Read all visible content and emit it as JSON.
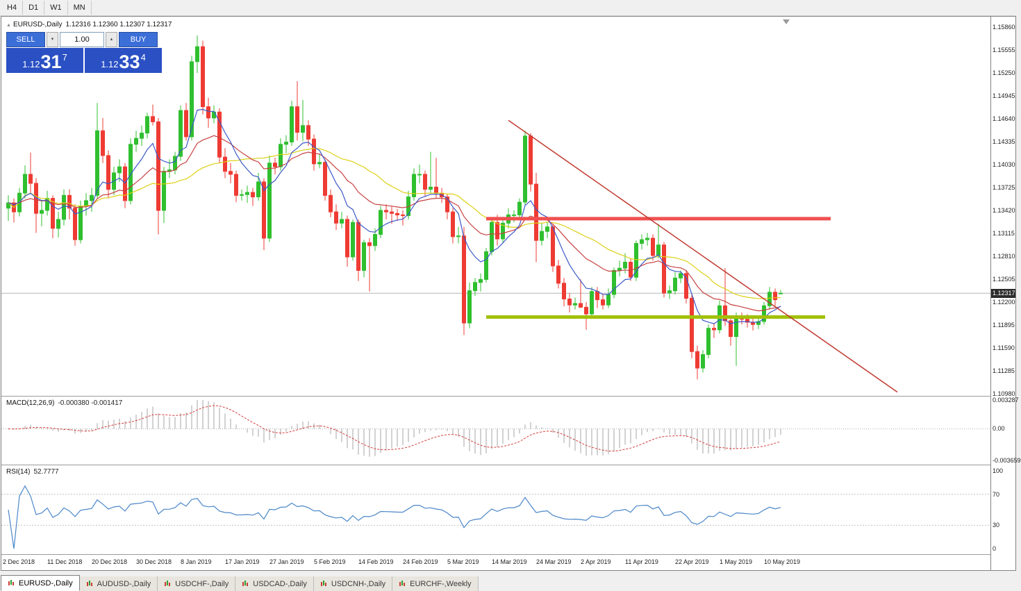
{
  "toolbar": {
    "timeframes": [
      "H4",
      "D1",
      "W1",
      "MN"
    ]
  },
  "chart": {
    "collapse_icon": "▲",
    "title_symbol": "EURUSD-,Daily",
    "title_ohlc": "1.12316 1.12360 1.12307 1.12317"
  },
  "trade_panel": {
    "sell_label": "SELL",
    "buy_label": "BUY",
    "volume": "1.00",
    "spin_down_icon": "▼",
    "spin_up_icon": "▲",
    "sell_price": {
      "prefix": "1.12",
      "big": "31",
      "sup": "7"
    },
    "buy_price": {
      "prefix": "1.12",
      "big": "33",
      "sup": "4"
    }
  },
  "macd_panel": {
    "label": "MACD(12,26,9)",
    "values": "-0.000380 -0.001417"
  },
  "rsi_panel": {
    "label": "RSI(14)",
    "value": "52.7777"
  },
  "date_axis": {
    "labels": [
      {
        "text": "2 Dec 2018",
        "bar": 0
      },
      {
        "text": "11 Dec 2018",
        "bar": 8
      },
      {
        "text": "20 Dec 2018",
        "bar": 16
      },
      {
        "text": "30 Dec 2018",
        "bar": 24
      },
      {
        "text": "8 Jan 2019",
        "bar": 32
      },
      {
        "text": "17 Jan 2019",
        "bar": 40
      },
      {
        "text": "27 Jan 2019",
        "bar": 48
      },
      {
        "text": "5 Feb 2019",
        "bar": 56
      },
      {
        "text": "14 Feb 2019",
        "bar": 64
      },
      {
        "text": "24 Feb 2019",
        "bar": 72
      },
      {
        "text": "5 Mar 2019",
        "bar": 80
      },
      {
        "text": "14 Mar 2019",
        "bar": 88
      },
      {
        "text": "24 Mar 2019",
        "bar": 96
      },
      {
        "text": "2 Apr 2019",
        "bar": 104
      },
      {
        "text": "11 Apr 2019",
        "bar": 112
      },
      {
        "text": "22 Apr 2019",
        "bar": 121
      },
      {
        "text": "1 May 2019",
        "bar": 129
      },
      {
        "text": "10 May 2019",
        "bar": 137
      }
    ]
  },
  "tabs": [
    {
      "label": "EURUSD-,Daily",
      "active": true
    },
    {
      "label": "AUDUSD-,Daily",
      "active": false
    },
    {
      "label": "USDCHF-,Daily",
      "active": false
    },
    {
      "label": "USDCAD-,Daily",
      "active": false
    },
    {
      "label": "USDCNH-,Daily",
      "active": false
    },
    {
      "label": "EURCHF-,Weekly",
      "active": false
    }
  ],
  "chart_data": {
    "type": "candlestick",
    "symbol": "EURUSD",
    "timeframe": "Daily",
    "price_axis": {
      "top": 1.16,
      "bottom": 1.1095,
      "ticks": [
        1.1586,
        1.15555,
        1.1525,
        1.14945,
        1.1464,
        1.14335,
        1.1403,
        1.13725,
        1.1342,
        1.13115,
        1.1281,
        1.12505,
        1.122,
        1.11895,
        1.1159,
        1.11285,
        1.1098
      ],
      "current": 1.12317,
      "current_label": "1.12317"
    },
    "colors": {
      "up": "#2fbf2f",
      "down": "#ee3b33",
      "ma_fast": "#3c59c8",
      "ma_mid": "#c84040",
      "ma_slow": "#ddd013",
      "macd_hist": "#a4a4a4",
      "macd_signal": "#d43a3a",
      "rsi": "#4a86c8",
      "resistance": "#f05050",
      "support": "#a2c00a",
      "trendline": "#c03a30",
      "current_line": "#b6b6b6",
      "levels": "#c0c0c0"
    },
    "candles": [
      [
        1.1345,
        1.1362,
        1.1328,
        1.1352
      ],
      [
        1.1352,
        1.1358,
        1.1326,
        1.134
      ],
      [
        1.134,
        1.1372,
        1.1334,
        1.1365
      ],
      [
        1.1365,
        1.1402,
        1.1358,
        1.139
      ],
      [
        1.139,
        1.1419,
        1.1365,
        1.1378
      ],
      [
        1.1378,
        1.1385,
        1.1312,
        1.1338
      ],
      [
        1.1338,
        1.1355,
        1.1321,
        1.1342
      ],
      [
        1.1342,
        1.1368,
        1.1335,
        1.1358
      ],
      [
        1.1358,
        1.1362,
        1.1305,
        1.1318
      ],
      [
        1.1318,
        1.134,
        1.1306,
        1.133
      ],
      [
        1.133,
        1.137,
        1.1322,
        1.1362
      ],
      [
        1.1362,
        1.137,
        1.133,
        1.1345
      ],
      [
        1.1345,
        1.135,
        1.1295,
        1.1303
      ],
      [
        1.1303,
        1.1355,
        1.1298,
        1.1348
      ],
      [
        1.1348,
        1.1365,
        1.1335,
        1.1355
      ],
      [
        1.1355,
        1.1372,
        1.134,
        1.1362
      ],
      [
        1.1362,
        1.1485,
        1.1358,
        1.1448
      ],
      [
        1.1448,
        1.1465,
        1.1405,
        1.1415
      ],
      [
        1.1415,
        1.1422,
        1.1358,
        1.137
      ],
      [
        1.137,
        1.14,
        1.1362,
        1.1392
      ],
      [
        1.1392,
        1.141,
        1.138,
        1.14
      ],
      [
        1.14,
        1.1405,
        1.1345,
        1.1355
      ],
      [
        1.1355,
        1.1438,
        1.135,
        1.143
      ],
      [
        1.143,
        1.1448,
        1.142,
        1.1438
      ],
      [
        1.1438,
        1.1455,
        1.1428,
        1.1445
      ],
      [
        1.1445,
        1.1472,
        1.1438,
        1.1467
      ],
      [
        1.1467,
        1.1483,
        1.1455,
        1.146
      ],
      [
        1.146,
        1.1465,
        1.131,
        1.1342
      ],
      [
        1.1342,
        1.14,
        1.1325,
        1.1394
      ],
      [
        1.1394,
        1.141,
        1.1385,
        1.1396
      ],
      [
        1.1396,
        1.142,
        1.139,
        1.1414
      ],
      [
        1.1414,
        1.1482,
        1.1408,
        1.1475
      ],
      [
        1.1475,
        1.1485,
        1.1435,
        1.144
      ],
      [
        1.144,
        1.1548,
        1.1435,
        1.154
      ],
      [
        1.154,
        1.1575,
        1.1525,
        1.156
      ],
      [
        1.156,
        1.1568,
        1.147,
        1.148
      ],
      [
        1.148,
        1.1492,
        1.1452,
        1.1465
      ],
      [
        1.1465,
        1.1482,
        1.1458,
        1.1473
      ],
      [
        1.1473,
        1.1478,
        1.1405,
        1.1413
      ],
      [
        1.1413,
        1.1425,
        1.1385,
        1.1394
      ],
      [
        1.1394,
        1.1405,
        1.1378,
        1.139
      ],
      [
        1.139,
        1.1395,
        1.1353,
        1.1362
      ],
      [
        1.1362,
        1.137,
        1.1355,
        1.1363
      ],
      [
        1.1363,
        1.1375,
        1.1352,
        1.1366
      ],
      [
        1.1366,
        1.1372,
        1.1348,
        1.136
      ],
      [
        1.136,
        1.1392,
        1.1355,
        1.138
      ],
      [
        1.138,
        1.1385,
        1.1289,
        1.1305
      ],
      [
        1.1305,
        1.1415,
        1.13,
        1.1405
      ],
      [
        1.1405,
        1.1412,
        1.139,
        1.14
      ],
      [
        1.14,
        1.1438,
        1.1395,
        1.143
      ],
      [
        1.143,
        1.1442,
        1.1418,
        1.1433
      ],
      [
        1.1433,
        1.1488,
        1.1428,
        1.148
      ],
      [
        1.148,
        1.1514,
        1.1435,
        1.1446
      ],
      [
        1.1446,
        1.1489,
        1.1434,
        1.1455
      ],
      [
        1.1455,
        1.1462,
        1.1428,
        1.1437
      ],
      [
        1.1437,
        1.1443,
        1.1395,
        1.1404
      ],
      [
        1.1404,
        1.1418,
        1.1398,
        1.1406
      ],
      [
        1.1406,
        1.141,
        1.1355,
        1.1362
      ],
      [
        1.1362,
        1.137,
        1.1333,
        1.134
      ],
      [
        1.134,
        1.135,
        1.1316,
        1.1325
      ],
      [
        1.1325,
        1.134,
        1.1318,
        1.133
      ],
      [
        1.133,
        1.1335,
        1.1267,
        1.128
      ],
      [
        1.128,
        1.133,
        1.1275,
        1.1326
      ],
      [
        1.1326,
        1.133,
        1.1248,
        1.1262
      ],
      [
        1.1262,
        1.1303,
        1.1253,
        1.1299
      ],
      [
        1.1299,
        1.1305,
        1.1234,
        1.1295
      ],
      [
        1.1295,
        1.1318,
        1.1288,
        1.131
      ],
      [
        1.131,
        1.1348,
        1.1305,
        1.1342
      ],
      [
        1.1342,
        1.135,
        1.133,
        1.134
      ],
      [
        1.134,
        1.1347,
        1.1324,
        1.1338
      ],
      [
        1.1338,
        1.1344,
        1.1328,
        1.1336
      ],
      [
        1.1336,
        1.1342,
        1.1322,
        1.1335
      ],
      [
        1.1335,
        1.1368,
        1.133,
        1.136
      ],
      [
        1.136,
        1.1398,
        1.1355,
        1.139
      ],
      [
        1.139,
        1.1403,
        1.1378,
        1.139
      ],
      [
        1.139,
        1.1395,
        1.136,
        1.137
      ],
      [
        1.137,
        1.142,
        1.1365,
        1.1373
      ],
      [
        1.1373,
        1.1412,
        1.1358,
        1.1365
      ],
      [
        1.1365,
        1.1372,
        1.1352,
        1.136
      ],
      [
        1.136,
        1.1364,
        1.133,
        1.134
      ],
      [
        1.134,
        1.1345,
        1.1298,
        1.1307
      ],
      [
        1.1307,
        1.132,
        1.1298,
        1.1308
      ],
      [
        1.1308,
        1.132,
        1.1176,
        1.1192
      ],
      [
        1.1192,
        1.1246,
        1.1185,
        1.1235
      ],
      [
        1.1235,
        1.1252,
        1.1228,
        1.1246
      ],
      [
        1.1246,
        1.1258,
        1.1234,
        1.125
      ],
      [
        1.125,
        1.1292,
        1.1246,
        1.1287
      ],
      [
        1.1287,
        1.133,
        1.1282,
        1.1326
      ],
      [
        1.1326,
        1.1336,
        1.1295,
        1.1304
      ],
      [
        1.1304,
        1.133,
        1.1298,
        1.1325
      ],
      [
        1.1325,
        1.1345,
        1.1318,
        1.1336
      ],
      [
        1.1336,
        1.1342,
        1.1326,
        1.1336
      ],
      [
        1.1336,
        1.1358,
        1.133,
        1.1353
      ],
      [
        1.1353,
        1.1448,
        1.1348,
        1.1441
      ],
      [
        1.1441,
        1.1445,
        1.1367,
        1.1377
      ],
      [
        1.1377,
        1.1392,
        1.1273,
        1.1302
      ],
      [
        1.1302,
        1.1325,
        1.1295,
        1.1314
      ],
      [
        1.1314,
        1.1327,
        1.1305,
        1.132
      ],
      [
        1.132,
        1.1324,
        1.126,
        1.1268
      ],
      [
        1.1268,
        1.1276,
        1.1238,
        1.1245
      ],
      [
        1.1245,
        1.1252,
        1.1214,
        1.1224
      ],
      [
        1.1224,
        1.1232,
        1.1206,
        1.1216
      ],
      [
        1.1216,
        1.1226,
        1.121,
        1.1218
      ],
      [
        1.1218,
        1.125,
        1.1212,
        1.1213
      ],
      [
        1.1213,
        1.122,
        1.1183,
        1.1204
      ],
      [
        1.1204,
        1.124,
        1.1198,
        1.1234
      ],
      [
        1.1234,
        1.124,
        1.1212,
        1.1223
      ],
      [
        1.1223,
        1.123,
        1.121,
        1.1216
      ],
      [
        1.1216,
        1.1238,
        1.1212,
        1.123
      ],
      [
        1.123,
        1.1266,
        1.1225,
        1.1262
      ],
      [
        1.1262,
        1.1275,
        1.1254,
        1.1265
      ],
      [
        1.1265,
        1.1285,
        1.1258,
        1.1273
      ],
      [
        1.1273,
        1.1278,
        1.1248,
        1.1253
      ],
      [
        1.1253,
        1.1302,
        1.1248,
        1.1298
      ],
      [
        1.1298,
        1.131,
        1.129,
        1.1303
      ],
      [
        1.1303,
        1.1312,
        1.1295,
        1.1305
      ],
      [
        1.1305,
        1.131,
        1.1275,
        1.1282
      ],
      [
        1.1282,
        1.1324,
        1.1278,
        1.1296
      ],
      [
        1.1296,
        1.13,
        1.1226,
        1.1232
      ],
      [
        1.1232,
        1.1242,
        1.1224,
        1.1235
      ],
      [
        1.1235,
        1.126,
        1.123,
        1.1252
      ],
      [
        1.1252,
        1.1262,
        1.1245,
        1.1258
      ],
      [
        1.1258,
        1.1262,
        1.1218,
        1.1225
      ],
      [
        1.1225,
        1.123,
        1.1145,
        1.1154
      ],
      [
        1.1154,
        1.1162,
        1.1117,
        1.1132
      ],
      [
        1.1132,
        1.1156,
        1.1126,
        1.115
      ],
      [
        1.115,
        1.119,
        1.1145,
        1.1185
      ],
      [
        1.1185,
        1.1192,
        1.1172,
        1.1183
      ],
      [
        1.1183,
        1.1222,
        1.1178,
        1.1215
      ],
      [
        1.1215,
        1.1265,
        1.1188,
        1.1195
      ],
      [
        1.1195,
        1.1202,
        1.1162,
        1.1174
      ],
      [
        1.1174,
        1.1206,
        1.1135,
        1.12
      ],
      [
        1.12,
        1.1206,
        1.119,
        1.1197
      ],
      [
        1.1197,
        1.1204,
        1.1186,
        1.1193
      ],
      [
        1.1193,
        1.1198,
        1.1182,
        1.119
      ],
      [
        1.119,
        1.12,
        1.1184,
        1.1194
      ],
      [
        1.1194,
        1.122,
        1.119,
        1.1215
      ],
      [
        1.1215,
        1.124,
        1.121,
        1.1233
      ],
      [
        1.1233,
        1.1238,
        1.1215,
        1.1223
      ],
      [
        1.12316,
        1.1236,
        1.12307,
        1.12317
      ]
    ],
    "overlays": {
      "ma_fast_period": 8,
      "ma_mid_period": 21,
      "ma_slow_period": 34,
      "resistance": {
        "price": 1.1331,
        "from_bar": 86,
        "to_bar": 148,
        "width": 5
      },
      "support": {
        "price": 1.12,
        "from_bar": 86,
        "to_bar": 147,
        "width": 5
      },
      "trendline": {
        "from_bar": 90,
        "from_price": 1.1462,
        "to_bar": 160,
        "to_price": 1.11
      },
      "shift_marker_bar": 140
    },
    "macd": {
      "fast": 12,
      "slow": 26,
      "signal": 9,
      "range_top": 0.0033,
      "range_bottom": -0.0037,
      "current_main": -0.00038,
      "current_signal": -0.001417,
      "scale_labels": [
        {
          "v": 0.003287,
          "text": "0.003287"
        },
        {
          "v": 0,
          "text": "0.00"
        },
        {
          "v": -0.003659,
          "text": "-0.003659"
        }
      ]
    },
    "rsi": {
      "period": 14,
      "current": 52.7777,
      "levels": [
        70,
        30
      ],
      "scale_labels": [
        {
          "v": 100,
          "text": "100"
        },
        {
          "v": 70,
          "text": "70"
        },
        {
          "v": 30,
          "text": "30"
        },
        {
          "v": 0,
          "text": "0"
        }
      ]
    }
  }
}
